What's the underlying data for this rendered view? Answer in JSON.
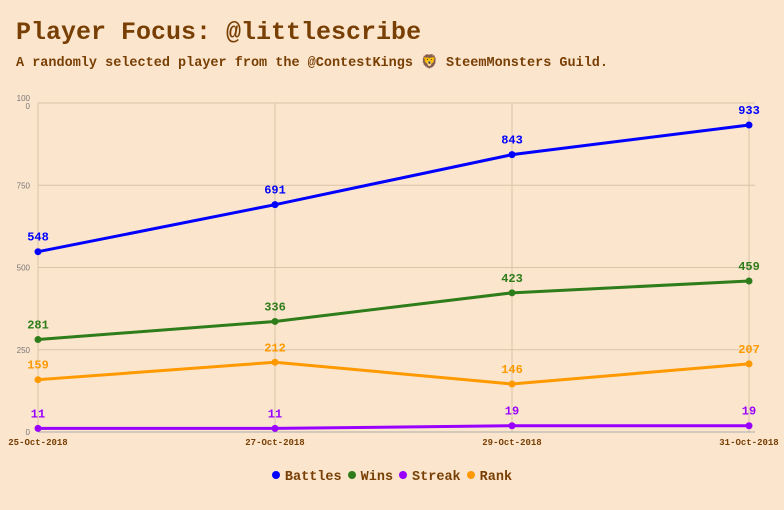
{
  "title": "Player Focus: @littlescribe",
  "subtitle": "A randomly selected player from the @ContestKings 🦁 SteemMonsters Guild.",
  "chart_data": {
    "type": "line",
    "categories": [
      "25-Oct-2018",
      "27-Oct-2018",
      "29-Oct-2018",
      "31-Oct-2018"
    ],
    "ylim": [
      0,
      1000
    ],
    "yticks": [
      "0",
      "250",
      "500",
      "750",
      "1000"
    ],
    "grid": true,
    "legend_position": "bottom",
    "series": [
      {
        "name": "Battles",
        "color": "#0000ff",
        "values": [
          548,
          691,
          843,
          933
        ]
      },
      {
        "name": "Wins",
        "color": "#2e7d1a",
        "values": [
          281,
          336,
          423,
          459
        ]
      },
      {
        "name": "Streak",
        "color": "#9900ff",
        "values": [
          11,
          11,
          19,
          19
        ]
      },
      {
        "name": "Rank",
        "color": "#ff9900",
        "values": [
          159,
          212,
          146,
          207
        ]
      }
    ]
  }
}
